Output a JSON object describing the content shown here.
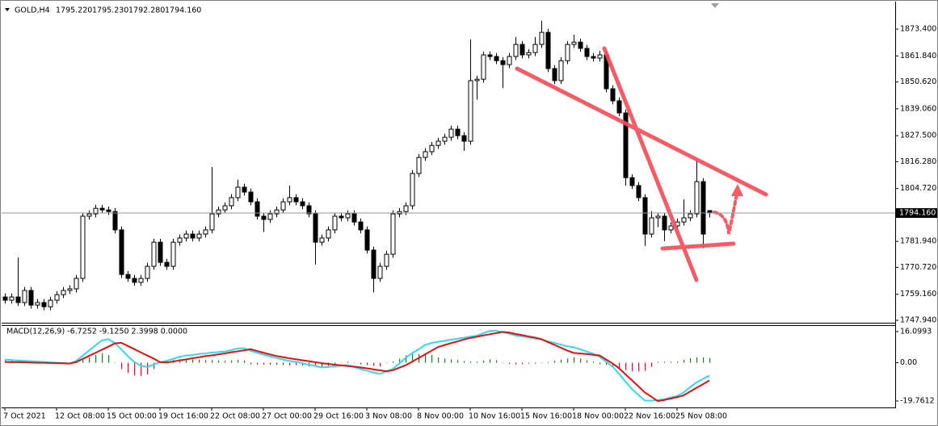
{
  "chart_data": [
    {
      "type": "candlestick",
      "symbol": "GOLD,H4",
      "header_labels": [
        "1795.220",
        "1795.230",
        "1792.280",
        "1794.160"
      ],
      "bull_color": "#ffffff",
      "bear_color": "#000000",
      "line_color": "#000000",
      "categories": [
        "7 Oct 2021",
        null,
        null,
        null,
        null,
        null,
        null,
        null,
        "12 Oct 08:00",
        null,
        null,
        null,
        null,
        null,
        null,
        null,
        "15 Oct 00:00",
        null,
        null,
        null,
        null,
        null,
        null,
        null,
        "19 Oct 16:00",
        null,
        null,
        null,
        null,
        null,
        null,
        null,
        "22 Oct 08:00",
        null,
        null,
        null,
        null,
        null,
        null,
        null,
        "27 Oct 00:00",
        null,
        null,
        null,
        null,
        null,
        null,
        null,
        "29 Oct 16:00",
        null,
        null,
        null,
        null,
        null,
        null,
        null,
        "3 Nov 08:00",
        null,
        null,
        null,
        null,
        null,
        null,
        null,
        "8 Nov 00:00",
        null,
        null,
        null,
        null,
        null,
        null,
        null,
        "10 Nov 16:00",
        null,
        null,
        null,
        null,
        null,
        null,
        null,
        "15 Nov 16:00",
        null,
        null,
        null,
        null,
        null,
        null,
        null,
        "18 Nov 00:00",
        null,
        null,
        null,
        null,
        null,
        null,
        null,
        "22 Nov 16:00",
        null,
        null,
        null,
        null,
        null,
        null,
        null,
        "25 Nov 08:00",
        null,
        null,
        null,
        null,
        null
      ],
      "values": [
        [
          1758.0,
          1759.5,
          1755.1,
          1756.6
        ],
        [
          1756.6,
          1759.5,
          1755.1,
          1758.0
        ],
        [
          1758.0,
          1775.0,
          1754.1,
          1755.6
        ],
        [
          1755.6,
          1762.3,
          1754.1,
          1760.8
        ],
        [
          1760.8,
          1762.3,
          1753.0,
          1754.5
        ],
        [
          1754.5,
          1757.1,
          1753.0,
          1755.6
        ],
        [
          1755.6,
          1757.1,
          1752.3,
          1753.8
        ],
        [
          1753.8,
          1758.1,
          1752.3,
          1756.6
        ],
        [
          1756.6,
          1760.5,
          1755.1,
          1759.0
        ],
        [
          1759.0,
          1762.3,
          1757.5,
          1760.8
        ],
        [
          1760.8,
          1763.0,
          1759.3,
          1761.5
        ],
        [
          1761.5,
          1767.5,
          1760.0,
          1766.0
        ],
        [
          1766.0,
          1794.3,
          1764.5,
          1792.8
        ],
        [
          1792.8,
          1795.3,
          1791.3,
          1793.8
        ],
        [
          1793.8,
          1797.7,
          1792.3,
          1796.2
        ],
        [
          1796.2,
          1797.7,
          1794.0,
          1795.5
        ],
        [
          1795.5,
          1797.0,
          1793.3,
          1794.8
        ],
        [
          1794.8,
          1796.3,
          1785.4,
          1786.9
        ],
        [
          1786.9,
          1788.4,
          1766.2,
          1767.7
        ],
        [
          1767.7,
          1769.2,
          1764.5,
          1766.0
        ],
        [
          1766.0,
          1767.5,
          1762.8,
          1764.3
        ],
        [
          1764.3,
          1767.5,
          1762.8,
          1766.0
        ],
        [
          1766.0,
          1772.7,
          1764.5,
          1771.2
        ],
        [
          1771.2,
          1783.1,
          1769.7,
          1781.6
        ],
        [
          1781.6,
          1783.1,
          1771.4,
          1772.9
        ],
        [
          1772.9,
          1774.4,
          1769.7,
          1771.2
        ],
        [
          1771.2,
          1783.1,
          1769.7,
          1781.6
        ],
        [
          1781.6,
          1784.9,
          1780.1,
          1783.4
        ],
        [
          1783.4,
          1786.6,
          1781.9,
          1785.1
        ],
        [
          1785.1,
          1786.6,
          1781.9,
          1783.4
        ],
        [
          1783.4,
          1786.6,
          1781.9,
          1785.1
        ],
        [
          1785.1,
          1788.4,
          1783.6,
          1786.9
        ],
        [
          1786.9,
          1814.0,
          1785.4,
          1793.8
        ],
        [
          1793.8,
          1797.0,
          1792.3,
          1795.5
        ],
        [
          1795.5,
          1798.8,
          1794.0,
          1797.3
        ],
        [
          1797.3,
          1802.3,
          1795.8,
          1800.8
        ],
        [
          1800.8,
          1808.5,
          1799.3,
          1805.3
        ],
        [
          1805.3,
          1806.8,
          1801.7,
          1803.2
        ],
        [
          1803.2,
          1804.7,
          1797.5,
          1799.0
        ],
        [
          1799.0,
          1800.5,
          1791.3,
          1792.8
        ],
        [
          1792.8,
          1794.3,
          1786.0,
          1791.4
        ],
        [
          1791.4,
          1795.3,
          1789.9,
          1793.8
        ],
        [
          1793.8,
          1797.0,
          1792.3,
          1795.5
        ],
        [
          1795.5,
          1800.5,
          1794.0,
          1799.0
        ],
        [
          1799.0,
          1806.0,
          1797.5,
          1800.8
        ],
        [
          1800.8,
          1802.3,
          1797.5,
          1799.0
        ],
        [
          1799.0,
          1800.5,
          1795.8,
          1797.3
        ],
        [
          1797.3,
          1798.8,
          1792.3,
          1793.8
        ],
        [
          1793.8,
          1795.3,
          1772.0,
          1781.6
        ],
        [
          1781.6,
          1784.9,
          1780.1,
          1783.4
        ],
        [
          1783.4,
          1788.4,
          1781.9,
          1786.9
        ],
        [
          1786.9,
          1794.3,
          1785.4,
          1792.8
        ],
        [
          1792.8,
          1794.3,
          1790.6,
          1792.1
        ],
        [
          1792.1,
          1795.3,
          1790.6,
          1793.8
        ],
        [
          1793.8,
          1795.3,
          1788.8,
          1790.3
        ],
        [
          1790.3,
          1791.8,
          1785.4,
          1786.9
        ],
        [
          1786.9,
          1788.4,
          1776.7,
          1778.2
        ],
        [
          1778.2,
          1779.7,
          1760.0,
          1766.0
        ],
        [
          1766.0,
          1772.7,
          1764.5,
          1771.2
        ],
        [
          1771.2,
          1777.9,
          1769.7,
          1776.4
        ],
        [
          1776.4,
          1795.3,
          1774.9,
          1793.8
        ],
        [
          1793.8,
          1796.3,
          1792.3,
          1794.8
        ],
        [
          1794.8,
          1798.8,
          1793.3,
          1797.3
        ],
        [
          1797.3,
          1812.7,
          1795.8,
          1811.2
        ],
        [
          1811.2,
          1819.6,
          1809.7,
          1818.1
        ],
        [
          1818.1,
          1822.1,
          1816.6,
          1820.6
        ],
        [
          1820.6,
          1824.8,
          1819.1,
          1823.3
        ],
        [
          1823.3,
          1826.6,
          1821.8,
          1825.1
        ],
        [
          1825.1,
          1828.3,
          1823.6,
          1826.8
        ],
        [
          1826.8,
          1831.8,
          1825.3,
          1830.3
        ],
        [
          1830.3,
          1831.8,
          1826.0,
          1827.5
        ],
        [
          1827.5,
          1829.0,
          1821.0,
          1825.1
        ],
        [
          1825.1,
          1869.0,
          1823.6,
          1851.2
        ],
        [
          1851.2,
          1853.3,
          1843.0,
          1851.8
        ],
        [
          1851.8,
          1863.8,
          1850.3,
          1862.3
        ],
        [
          1862.3,
          1863.8,
          1860.1,
          1861.6
        ],
        [
          1861.6,
          1863.1,
          1858.3,
          1859.8
        ],
        [
          1859.8,
          1861.3,
          1848.0,
          1858.1
        ],
        [
          1858.1,
          1863.1,
          1856.6,
          1861.6
        ],
        [
          1861.6,
          1870.0,
          1860.1,
          1866.8
        ],
        [
          1866.8,
          1868.3,
          1860.8,
          1862.3
        ],
        [
          1862.3,
          1864.8,
          1860.8,
          1863.3
        ],
        [
          1863.3,
          1870.0,
          1861.8,
          1866.8
        ],
        [
          1866.8,
          1877.0,
          1865.3,
          1872.0
        ],
        [
          1872.0,
          1873.5,
          1854.9,
          1856.4
        ],
        [
          1856.4,
          1857.9,
          1849.7,
          1851.2
        ],
        [
          1851.2,
          1861.3,
          1849.7,
          1859.8
        ],
        [
          1859.8,
          1868.3,
          1858.3,
          1866.8
        ],
        [
          1866.8,
          1871.0,
          1865.3,
          1867.8
        ],
        [
          1867.8,
          1869.3,
          1863.6,
          1865.1
        ],
        [
          1865.1,
          1866.6,
          1860.1,
          1861.6
        ],
        [
          1861.6,
          1863.1,
          1859.4,
          1860.9
        ],
        [
          1860.9,
          1864.0,
          1859.4,
          1862.3
        ],
        [
          1862.3,
          1863.8,
          1846.2,
          1847.7
        ],
        [
          1847.7,
          1849.2,
          1841.0,
          1842.5
        ],
        [
          1842.5,
          1844.0,
          1835.8,
          1837.3
        ],
        [
          1837.3,
          1838.8,
          1806.0,
          1809.4
        ],
        [
          1809.4,
          1810.9,
          1804.5,
          1806.0
        ],
        [
          1806.0,
          1807.5,
          1799.3,
          1800.8
        ],
        [
          1800.8,
          1802.3,
          1780.0,
          1785.1
        ],
        [
          1785.1,
          1795.0,
          1783.6,
          1792.1
        ],
        [
          1792.1,
          1794.3,
          1788.0,
          1792.8
        ],
        [
          1792.8,
          1794.3,
          1782.0,
          1786.9
        ],
        [
          1786.9,
          1790.1,
          1785.4,
          1788.6
        ],
        [
          1788.6,
          1791.8,
          1787.1,
          1790.3
        ],
        [
          1790.3,
          1800.0,
          1788.8,
          1792.1
        ],
        [
          1792.1,
          1795.3,
          1790.6,
          1793.8
        ],
        [
          1793.8,
          1817.0,
          1792.3,
          1807.7
        ],
        [
          1807.7,
          1809.2,
          1779.0,
          1785.1
        ],
        [
          1795.22,
          1795.23,
          1792.28,
          1794.16
        ]
      ],
      "ylim": [
        1746.9,
        1884.9
      ],
      "yticks": [
        {
          "value": 1873.4,
          "label": "1873.400"
        },
        {
          "value": 1861.84,
          "label": "1861.840"
        },
        {
          "value": 1850.62,
          "label": "1850.620"
        },
        {
          "value": 1839.06,
          "label": "1839.060"
        },
        {
          "value": 1827.5,
          "label": "1827.500"
        },
        {
          "value": 1816.28,
          "label": "1816.280"
        },
        {
          "value": 1804.72,
          "label": "1804.720"
        },
        {
          "value": 1781.94,
          "label": "1781.940"
        },
        {
          "value": 1770.72,
          "label": "1770.720"
        },
        {
          "value": 1759.16,
          "label": "1759.160"
        },
        {
          "value": 1747.94,
          "label": "1747.940"
        }
      ],
      "current_price": {
        "value": 1794.16,
        "label": "1794.160"
      }
    },
    {
      "type": "macd",
      "title": "MACD(12,26,9) -6.7252 -9.1250 2.3998 0.0000",
      "ylim": [
        -23.1,
        19.0
      ],
      "yticks": [
        16.0993,
        {
          "value": 0,
          "label": "0.00"
        },
        -19.7612
      ],
      "series": [
        {
          "colors": [
            "#1f7a1f",
            "#c81e1e"
          ],
          "values": [
            1.2,
            1.1,
            0.9,
            0.8,
            0.7,
            0.6,
            0.4,
            0.3,
            0.2,
            0.1,
            0.0,
            0.5,
            1.6,
            2.7,
            3.9,
            4.8,
            3.9,
            0.2,
            -3.3,
            -5.2,
            -6.6,
            -6.9,
            -6.0,
            -3.2,
            -0.1,
            0.9,
            1.4,
            1.8,
            2.0,
            1.7,
            1.7,
            1.4,
            1.4,
            1.2,
            1.0,
            1.1,
            1.5,
            1.1,
            -0.8,
            -0.9,
            -1.0,
            -1.0,
            -1.0,
            -1.2,
            -1.4,
            -1.3,
            -1.5,
            -1.8,
            -2.0,
            -2.2,
            -1.6,
            -0.8,
            -0.2,
            0.5,
            -0.2,
            -0.8,
            -1.2,
            -1.6,
            -1.9,
            -0.1,
            0.7,
            2.1,
            3.8,
            4.4,
            4.5,
            4.9,
            4.0,
            2.7,
            2.2,
            1.8,
            1.4,
            0.9,
            0.7,
            0.6,
            1.1,
            1.7,
            1.3,
            -0.1,
            -0.6,
            -0.8,
            -0.7,
            -0.5,
            -0.5,
            -0.2,
            0.4,
            1.0,
            1.6,
            2.2,
            2.9,
            2.2,
            1.3,
            0.6,
            -0.7,
            -1.1,
            -1.6,
            -2.8,
            -3.8,
            -4.5,
            -4.5,
            -4.2,
            -2.1,
            0.5,
            0.5,
            0.5,
            0.6,
            1.5,
            2.3,
            2.8,
            2.8,
            2.3998
          ]
        },
        {
          "color": "#34d8ee",
          "values": [
            1.6,
            1.4,
            1.2,
            1.0,
            0.8,
            0.6,
            0.4,
            0.2,
            0.0,
            -0.2,
            -0.4,
            0.8,
            3.5,
            6.2,
            9,
            11.5,
            12.2,
            10.2,
            7,
            3.5,
            0.5,
            -1.5,
            -2.2,
            -1,
            0.2,
            1,
            2,
            3,
            3.7,
            4,
            4.5,
            4.8,
            5.2,
            5.5,
            5.8,
            6.5,
            7.4,
            7.5,
            6.2,
            5.2,
            4.2,
            3.3,
            2.5,
            1.7,
            0.9,
            0.5,
            -0.2,
            -1,
            -1.7,
            -2.4,
            -2.2,
            -1.8,
            -1.5,
            -1.2,
            -2.2,
            -3.2,
            -4.1,
            -5,
            -5.8,
            -4.5,
            -3.2,
            -0.5,
            2.5,
            4.9,
            6.9,
            9.2,
            10.2,
            10.8,
            11.3,
            11.9,
            12.4,
            12.9,
            13.5,
            14,
            15.2,
            16.4,
            16.6,
            15.8,
            15,
            14.1,
            13.6,
            13.1,
            12.5,
            12,
            11.1,
            10.3,
            9.4,
            8.5,
            8,
            7,
            5.8,
            4.7,
            3.1,
            0.6,
            -1.9,
            -5.6,
            -9.7,
            -13.5,
            -16.6,
            -19.5,
            -19.6,
            -19.3,
            -18.8,
            -18,
            -17.2,
            -15.4,
            -12.6,
            -10.2,
            -8.3,
            -6.7252
          ]
        },
        {
          "color": "#e01010",
          "values": [
            0.4,
            0.3,
            0.3,
            0.2,
            0.1,
            0.0,
            0.0,
            -0.1,
            -0.2,
            -0.3,
            -0.4,
            0.3,
            1.9,
            3.5,
            5.1,
            6.7,
            8.3,
            10.0,
            10.3,
            8.7,
            7.1,
            5.4,
            3.8,
            2.2,
            0.3,
            0.1,
            0.6,
            1.2,
            1.7,
            2.3,
            2.8,
            3.4,
            3.8,
            4.3,
            4.8,
            5.4,
            5.9,
            6.4,
            7.0,
            6.1,
            5.2,
            4.3,
            3.5,
            2.9,
            2.3,
            1.8,
            1.3,
            0.8,
            0.3,
            -0.2,
            -0.6,
            -1.0,
            -1.3,
            -1.7,
            -2.0,
            -2.4,
            -2.9,
            -3.4,
            -3.9,
            -4.4,
            -3.9,
            -2.6,
            -1.3,
            0.5,
            2.4,
            4.3,
            6.2,
            8.1,
            9.1,
            10.1,
            11.0,
            12.0,
            12.8,
            13.4,
            14.1,
            14.7,
            15.3,
            15.9,
            15.6,
            14.9,
            14.3,
            13.6,
            13.0,
            12.2,
            10.7,
            9.3,
            7.8,
            6.3,
            5.1,
            4.8,
            4.5,
            4.1,
            3.8,
            1.7,
            -0.3,
            -2.8,
            -5.9,
            -9.0,
            -12.1,
            -15.3,
            -17.5,
            -19.8,
            -19.3,
            -18.5,
            -17.8,
            -16.9,
            -14.9,
            -13.0,
            -11.1,
            -9.125
          ]
        }
      ]
    }
  ]
}
